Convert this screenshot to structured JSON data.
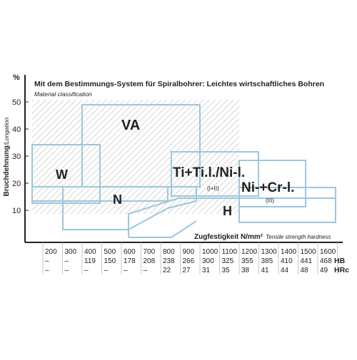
{
  "title": "Mit dem Bestimmungs-System für Spiralbohrer: Leichtes wirtschaftliches Bohren",
  "subtitle": "Material classification",
  "y_axis": {
    "unit": "%",
    "label": "Bruchdehnung",
    "label_en": "/Longation",
    "ticks": [
      50,
      40,
      30,
      20,
      10
    ]
  },
  "x_axis": {
    "label": "Zugfestigkeit N/mm²",
    "label_en": "Tensile strength hardness"
  },
  "table": {
    "strength": [
      200,
      300,
      400,
      500,
      600,
      700,
      800,
      900,
      1000,
      1100,
      1200,
      1300,
      1400,
      1500,
      1600
    ],
    "hb": [
      "–",
      "–",
      119,
      150,
      178,
      208,
      238,
      266,
      300,
      325,
      355,
      385,
      410,
      441,
      468
    ],
    "hrc": [
      "–",
      "–",
      "–",
      "–",
      "–",
      "–",
      22,
      27,
      31,
      35,
      38,
      41,
      44,
      48,
      49
    ],
    "hb_label": "HB",
    "hrc_label": "HRc"
  },
  "regions": [
    {
      "label": "VA"
    },
    {
      "label": "W"
    },
    {
      "label": "N"
    },
    {
      "label": "Ti+Ti.l./Ni-l.",
      "note": "(I+II)"
    },
    {
      "label": "Ni-+Cr-l.",
      "note": "(III)"
    },
    {
      "label": "H"
    }
  ]
}
